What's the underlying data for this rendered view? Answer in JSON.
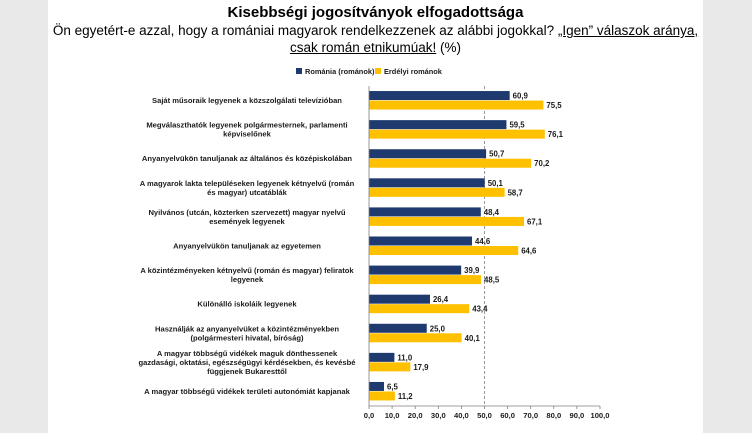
{
  "header": {
    "title": "Kisebbségi jogosítványok elfogadottsága",
    "subtitle_part1": "Ön egyetért-e azzal, hogy a romániai magyarok rendelkezzenek az alábbi jogokkal?",
    "subtitle_highlight": "„Igen” válaszok aránya, csak román etnikumúak!",
    "subtitle_part2": "(%)"
  },
  "chart_data": {
    "type": "bar",
    "orientation": "horizontal",
    "categories": [
      [
        "Saját műsoraik legyenek a közszolgálati televízióban"
      ],
      [
        "Megválaszthatók legyenek polgármesternek, parlamenti",
        "képviselőnek"
      ],
      [
        "Anyanyelvükön tanuljanak az általános és középiskolában"
      ],
      [
        "A magyarok lakta településeken legyenek kétnyelvű (román",
        "és magyar) utcatáblák"
      ],
      [
        "Nyilvános (utcán, közterken szervezett) magyar nyelvű",
        "események legyenek"
      ],
      [
        "Anyanyelvükön tanuljanak az egyetemen"
      ],
      [
        "A közintézményeken kétnyelvű (román és magyar) feliratok",
        "legyenek"
      ],
      [
        "Különálló iskoláik legyenek"
      ],
      [
        "Használják az anyanyelvüket a közintézményekben",
        "(polgármesteri hivatal, bíróság)"
      ],
      [
        "A magyar többségű vidékek maguk dönthessenek",
        "gazdasági, oktatási, egészségügyi kérdésekben, és kevésbé",
        "függjenek Bukaresttől"
      ],
      [
        "A magyar többségű vidékek területi autonómiát kapjanak"
      ]
    ],
    "series": [
      {
        "name": "Románia (románok)",
        "color": "#1f3a6e",
        "values": [
          60.9,
          59.5,
          50.7,
          50.1,
          48.4,
          44.6,
          39.9,
          26.4,
          25.0,
          11.0,
          6.5
        ],
        "labels": [
          "60,9",
          "59,5",
          "50,7",
          "50,1",
          "48,4",
          "44,6",
          "39,9",
          "26,4",
          "25,0",
          "11,0",
          "6,5"
        ]
      },
      {
        "name": "Erdélyi románok",
        "color": "#ffc000",
        "values": [
          75.5,
          76.1,
          70.2,
          58.7,
          67.1,
          64.6,
          48.5,
          43.4,
          40.1,
          17.9,
          11.2
        ],
        "labels": [
          "75,5",
          "76,1",
          "70,2",
          "58,7",
          "67,1",
          "64,6",
          "48,5",
          "43,4",
          "40,1",
          "17,9",
          "11,2"
        ]
      }
    ],
    "xlim": [
      0,
      100
    ],
    "xticks": [
      0,
      10,
      20,
      30,
      40,
      50,
      60,
      70,
      80,
      90,
      100
    ],
    "xtick_labels": [
      "0,0",
      "10,0",
      "20,0",
      "30,0",
      "40,0",
      "50,0",
      "60,0",
      "70,0",
      "80,0",
      "90,0",
      "100,0"
    ],
    "reference_line": 50,
    "legend_position": "top"
  }
}
